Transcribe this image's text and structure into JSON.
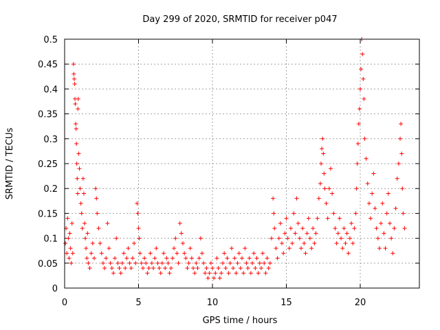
{
  "chart_data": {
    "type": "scatter",
    "title": "Day 299 of 2020, SRMTID for receiver p047",
    "xlabel": "GPS time / hours",
    "ylabel": "SRMTID / TECUs",
    "xlim": [
      0,
      24
    ],
    "ylim": [
      0,
      0.5
    ],
    "x_ticks": [
      0,
      5,
      10,
      15,
      20
    ],
    "y_ticks": [
      0,
      0.05,
      0.1,
      0.15,
      0.2,
      0.25,
      0.3,
      0.35,
      0.4,
      0.45,
      0.5
    ],
    "x_tick_labels": [
      "0",
      "5",
      "10",
      "15",
      "20"
    ],
    "y_tick_labels": [
      "0",
      "0.05",
      "0.1",
      "0.15",
      "0.2",
      "0.25",
      "0.3",
      "0.35",
      "0.4",
      "0.45",
      "0.5"
    ],
    "grid": true,
    "marker": "+",
    "color": "#ff0000",
    "series": [
      {
        "name": "SRMTID",
        "points": [
          [
            0.05,
            0.09
          ],
          [
            0.1,
            0.12
          ],
          [
            0.15,
            0.07
          ],
          [
            0.2,
            0.14
          ],
          [
            0.25,
            0.1
          ],
          [
            0.3,
            0.06
          ],
          [
            0.35,
            0.11
          ],
          [
            0.4,
            0.08
          ],
          [
            0.45,
            0.05
          ],
          [
            0.5,
            0.13
          ],
          [
            0.55,
            0.07
          ],
          [
            0.6,
            0.45
          ],
          [
            0.62,
            0.43
          ],
          [
            0.65,
            0.42
          ],
          [
            0.68,
            0.41
          ],
          [
            0.7,
            0.38
          ],
          [
            0.72,
            0.37
          ],
          [
            0.75,
            0.33
          ],
          [
            0.78,
            0.32
          ],
          [
            0.8,
            0.29
          ],
          [
            0.82,
            0.25
          ],
          [
            0.85,
            0.22
          ],
          [
            0.88,
            0.19
          ],
          [
            0.9,
            0.36
          ],
          [
            0.92,
            0.38
          ],
          [
            0.95,
            0.27
          ],
          [
            1.0,
            0.24
          ],
          [
            1.05,
            0.2
          ],
          [
            1.1,
            0.17
          ],
          [
            1.15,
            0.15
          ],
          [
            1.2,
            0.12
          ],
          [
            1.25,
            0.22
          ],
          [
            1.3,
            0.19
          ],
          [
            1.35,
            0.13
          ],
          [
            1.4,
            0.1
          ],
          [
            1.45,
            0.08
          ],
          [
            1.5,
            0.06
          ],
          [
            1.55,
            0.11
          ],
          [
            1.6,
            0.05
          ],
          [
            1.7,
            0.04
          ],
          [
            1.8,
            0.07
          ],
          [
            1.9,
            0.09
          ],
          [
            2.0,
            0.06
          ],
          [
            2.1,
            0.2
          ],
          [
            2.15,
            0.18
          ],
          [
            2.2,
            0.15
          ],
          [
            2.3,
            0.12
          ],
          [
            2.4,
            0.09
          ],
          [
            2.5,
            0.07
          ],
          [
            2.6,
            0.05
          ],
          [
            2.7,
            0.04
          ],
          [
            2.8,
            0.06
          ],
          [
            2.9,
            0.13
          ],
          [
            3.0,
            0.08
          ],
          [
            3.1,
            0.05
          ],
          [
            3.2,
            0.04
          ],
          [
            3.3,
            0.03
          ],
          [
            3.4,
            0.06
          ],
          [
            3.5,
            0.1
          ],
          [
            3.6,
            0.05
          ],
          [
            3.7,
            0.04
          ],
          [
            3.8,
            0.03
          ],
          [
            3.9,
            0.05
          ],
          [
            4.0,
            0.07
          ],
          [
            4.1,
            0.04
          ],
          [
            4.2,
            0.06
          ],
          [
            4.3,
            0.08
          ],
          [
            4.4,
            0.05
          ],
          [
            4.5,
            0.04
          ],
          [
            4.6,
            0.06
          ],
          [
            4.7,
            0.09
          ],
          [
            4.8,
            0.05
          ],
          [
            4.9,
            0.17
          ],
          [
            4.95,
            0.15
          ],
          [
            5.0,
            0.12
          ],
          [
            5.05,
            0.1
          ],
          [
            5.1,
            0.07
          ],
          [
            5.2,
            0.05
          ],
          [
            5.3,
            0.04
          ],
          [
            5.4,
            0.06
          ],
          [
            5.5,
            0.05
          ],
          [
            5.6,
            0.03
          ],
          [
            5.7,
            0.04
          ],
          [
            5.8,
            0.07
          ],
          [
            5.9,
            0.05
          ],
          [
            6.0,
            0.04
          ],
          [
            6.1,
            0.06
          ],
          [
            6.2,
            0.08
          ],
          [
            6.3,
            0.05
          ],
          [
            6.4,
            0.04
          ],
          [
            6.5,
            0.03
          ],
          [
            6.6,
            0.05
          ],
          [
            6.7,
            0.07
          ],
          [
            6.8,
            0.04
          ],
          [
            6.9,
            0.06
          ],
          [
            7.0,
            0.05
          ],
          [
            7.1,
            0.03
          ],
          [
            7.2,
            0.04
          ],
          [
            7.3,
            0.06
          ],
          [
            7.4,
            0.08
          ],
          [
            7.5,
            0.1
          ],
          [
            7.6,
            0.07
          ],
          [
            7.7,
            0.05
          ],
          [
            7.8,
            0.13
          ],
          [
            7.9,
            0.11
          ],
          [
            8.0,
            0.09
          ],
          [
            8.1,
            0.07
          ],
          [
            8.2,
            0.06
          ],
          [
            8.3,
            0.04
          ],
          [
            8.4,
            0.05
          ],
          [
            8.5,
            0.08
          ],
          [
            8.6,
            0.06
          ],
          [
            8.7,
            0.04
          ],
          [
            8.8,
            0.03
          ],
          [
            8.9,
            0.05
          ],
          [
            9.0,
            0.04
          ],
          [
            9.1,
            0.06
          ],
          [
            9.2,
            0.1
          ],
          [
            9.3,
            0.07
          ],
          [
            9.4,
            0.05
          ],
          [
            9.5,
            0.03
          ],
          [
            9.6,
            0.04
          ],
          [
            9.7,
            0.02
          ],
          [
            9.8,
            0.03
          ],
          [
            9.9,
            0.05
          ],
          [
            10.0,
            0.04
          ],
          [
            10.1,
            0.02
          ],
          [
            10.2,
            0.03
          ],
          [
            10.3,
            0.06
          ],
          [
            10.4,
            0.04
          ],
          [
            10.5,
            0.02
          ],
          [
            10.6,
            0.03
          ],
          [
            10.7,
            0.05
          ],
          [
            10.8,
            0.07
          ],
          [
            10.9,
            0.04
          ],
          [
            11.0,
            0.06
          ],
          [
            11.1,
            0.03
          ],
          [
            11.2,
            0.05
          ],
          [
            11.3,
            0.08
          ],
          [
            11.4,
            0.04
          ],
          [
            11.5,
            0.06
          ],
          [
            11.6,
            0.03
          ],
          [
            11.7,
            0.05
          ],
          [
            11.8,
            0.07
          ],
          [
            11.9,
            0.04
          ],
          [
            12.0,
            0.06
          ],
          [
            12.1,
            0.03
          ],
          [
            12.2,
            0.08
          ],
          [
            12.3,
            0.05
          ],
          [
            12.4,
            0.04
          ],
          [
            12.5,
            0.06
          ],
          [
            12.6,
            0.03
          ],
          [
            12.7,
            0.05
          ],
          [
            12.8,
            0.07
          ],
          [
            12.9,
            0.04
          ],
          [
            13.0,
            0.06
          ],
          [
            13.1,
            0.03
          ],
          [
            13.2,
            0.05
          ],
          [
            13.3,
            0.04
          ],
          [
            13.4,
            0.07
          ],
          [
            13.5,
            0.05
          ],
          [
            13.6,
            0.03
          ],
          [
            13.7,
            0.06
          ],
          [
            13.8,
            0.04
          ],
          [
            13.9,
            0.05
          ],
          [
            14.0,
            0.1
          ],
          [
            14.1,
            0.18
          ],
          [
            14.15,
            0.15
          ],
          [
            14.2,
            0.12
          ],
          [
            14.3,
            0.08
          ],
          [
            14.4,
            0.06
          ],
          [
            14.5,
            0.1
          ],
          [
            14.6,
            0.13
          ],
          [
            14.7,
            0.09
          ],
          [
            14.8,
            0.07
          ],
          [
            14.9,
            0.11
          ],
          [
            15.0,
            0.14
          ],
          [
            15.1,
            0.1
          ],
          [
            15.2,
            0.08
          ],
          [
            15.3,
            0.12
          ],
          [
            15.4,
            0.09
          ],
          [
            15.5,
            0.15
          ],
          [
            15.6,
            0.11
          ],
          [
            15.7,
            0.18
          ],
          [
            15.8,
            0.13
          ],
          [
            15.9,
            0.1
          ],
          [
            16.0,
            0.08
          ],
          [
            16.1,
            0.12
          ],
          [
            16.2,
            0.09
          ],
          [
            16.3,
            0.07
          ],
          [
            16.4,
            0.11
          ],
          [
            16.5,
            0.14
          ],
          [
            16.6,
            0.1
          ],
          [
            16.7,
            0.08
          ],
          [
            16.8,
            0.12
          ],
          [
            16.9,
            0.09
          ],
          [
            17.0,
            0.11
          ],
          [
            17.1,
            0.14
          ],
          [
            17.2,
            0.18
          ],
          [
            17.3,
            0.21
          ],
          [
            17.35,
            0.25
          ],
          [
            17.4,
            0.28
          ],
          [
            17.45,
            0.3
          ],
          [
            17.5,
            0.27
          ],
          [
            17.55,
            0.23
          ],
          [
            17.6,
            0.2
          ],
          [
            17.7,
            0.17
          ],
          [
            17.8,
            0.14
          ],
          [
            17.9,
            0.2
          ],
          [
            18.0,
            0.24
          ],
          [
            18.1,
            0.19
          ],
          [
            18.2,
            0.15
          ],
          [
            18.3,
            0.12
          ],
          [
            18.4,
            0.09
          ],
          [
            18.5,
            0.11
          ],
          [
            18.6,
            0.14
          ],
          [
            18.7,
            0.1
          ],
          [
            18.8,
            0.08
          ],
          [
            18.9,
            0.12
          ],
          [
            19.0,
            0.09
          ],
          [
            19.1,
            0.11
          ],
          [
            19.2,
            0.07
          ],
          [
            19.3,
            0.1
          ],
          [
            19.4,
            0.13
          ],
          [
            19.5,
            0.09
          ],
          [
            19.6,
            0.12
          ],
          [
            19.7,
            0.15
          ],
          [
            19.75,
            0.2
          ],
          [
            19.8,
            0.25
          ],
          [
            19.85,
            0.29
          ],
          [
            19.9,
            0.33
          ],
          [
            19.95,
            0.36
          ],
          [
            20.0,
            0.4
          ],
          [
            20.05,
            0.44
          ],
          [
            20.1,
            0.5
          ],
          [
            20.15,
            0.47
          ],
          [
            20.2,
            0.42
          ],
          [
            20.25,
            0.38
          ],
          [
            20.3,
            0.3
          ],
          [
            20.4,
            0.26
          ],
          [
            20.5,
            0.21
          ],
          [
            20.6,
            0.17
          ],
          [
            20.7,
            0.14
          ],
          [
            20.8,
            0.19
          ],
          [
            20.9,
            0.23
          ],
          [
            21.0,
            0.16
          ],
          [
            21.1,
            0.12
          ],
          [
            21.2,
            0.1
          ],
          [
            21.3,
            0.08
          ],
          [
            21.4,
            0.13
          ],
          [
            21.5,
            0.17
          ],
          [
            21.6,
            0.11
          ],
          [
            21.7,
            0.08
          ],
          [
            21.8,
            0.15
          ],
          [
            21.9,
            0.19
          ],
          [
            22.0,
            0.13
          ],
          [
            22.1,
            0.1
          ],
          [
            22.2,
            0.07
          ],
          [
            22.3,
            0.12
          ],
          [
            22.4,
            0.16
          ],
          [
            22.5,
            0.22
          ],
          [
            22.6,
            0.25
          ],
          [
            22.7,
            0.3
          ],
          [
            22.75,
            0.33
          ],
          [
            22.8,
            0.27
          ],
          [
            22.85,
            0.2
          ],
          [
            22.9,
            0.15
          ],
          [
            23.0,
            0.12
          ]
        ]
      }
    ]
  }
}
